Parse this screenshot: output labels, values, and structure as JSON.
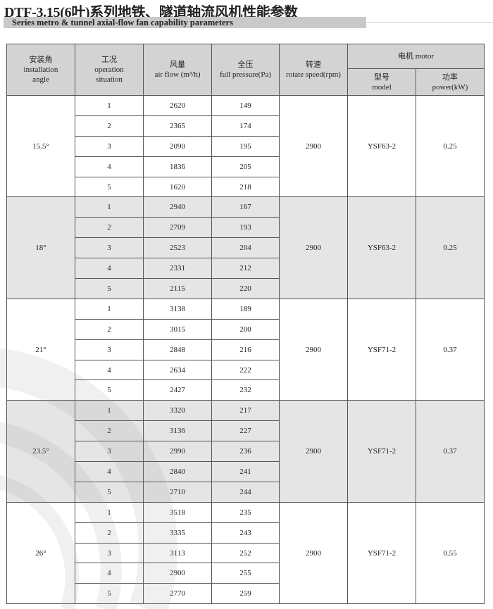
{
  "title": "DTF-3.15(6叶)系列地铁、隧道轴流风机性能参数",
  "subtitle": "Series metro & tunnel axial-flow fan capability parameters",
  "colors": {
    "header_bg": "#d3d3d3",
    "shade_bg": "#e1e1e1",
    "subtitle_bar": "#c9c9c9"
  },
  "headers": {
    "angle": [
      "安装角",
      "installation",
      "angle"
    ],
    "situation": [
      "工况",
      "operation",
      "situation"
    ],
    "airflow": [
      "风量",
      "air flow (m³/h)"
    ],
    "pressure": [
      "全压",
      "full pressure(Pa)"
    ],
    "speed": [
      "转速",
      "rotate speed(rpm)"
    ],
    "motor": "电机 motor",
    "model": [
      "型号",
      "model"
    ],
    "power": [
      "功率",
      "power(kW)"
    ]
  },
  "groups": [
    {
      "angle": "15.5°",
      "speed": "2900",
      "model": "YSF63-2",
      "power": "0.25",
      "rows": [
        [
          "1",
          "2620",
          "149"
        ],
        [
          "2",
          "2365",
          "174"
        ],
        [
          "3",
          "2090",
          "195"
        ],
        [
          "4",
          "1836",
          "205"
        ],
        [
          "5",
          "1620",
          "218"
        ]
      ]
    },
    {
      "angle": "18°",
      "speed": "2900",
      "model": "YSF63-2",
      "power": "0.25",
      "rows": [
        [
          "1",
          "2940",
          "167"
        ],
        [
          "2",
          "2709",
          "193"
        ],
        [
          "3",
          "2523",
          "204"
        ],
        [
          "4",
          "2331",
          "212"
        ],
        [
          "5",
          "2115",
          "220"
        ]
      ]
    },
    {
      "angle": "21°",
      "speed": "2900",
      "model": "YSF71-2",
      "power": "0.37",
      "rows": [
        [
          "1",
          "3138",
          "189"
        ],
        [
          "2",
          "3015",
          "200"
        ],
        [
          "3",
          "2848",
          "216"
        ],
        [
          "4",
          "2634",
          "222"
        ],
        [
          "5",
          "2427",
          "232"
        ]
      ]
    },
    {
      "angle": "23.5°",
      "speed": "2900",
      "model": "YSF71-2",
      "power": "0.37",
      "rows": [
        [
          "1",
          "3320",
          "217"
        ],
        [
          "2",
          "3136",
          "227"
        ],
        [
          "3",
          "2990",
          "236"
        ],
        [
          "4",
          "2840",
          "241"
        ],
        [
          "5",
          "2710",
          "244"
        ]
      ]
    },
    {
      "angle": "26°",
      "speed": "2900",
      "model": "YSF71-2",
      "power": "0.55",
      "rows": [
        [
          "1",
          "3518",
          "235"
        ],
        [
          "2",
          "3335",
          "243"
        ],
        [
          "3",
          "3113",
          "252"
        ],
        [
          "4",
          "2900",
          "255"
        ],
        [
          "5",
          "2770",
          "259"
        ]
      ]
    }
  ]
}
